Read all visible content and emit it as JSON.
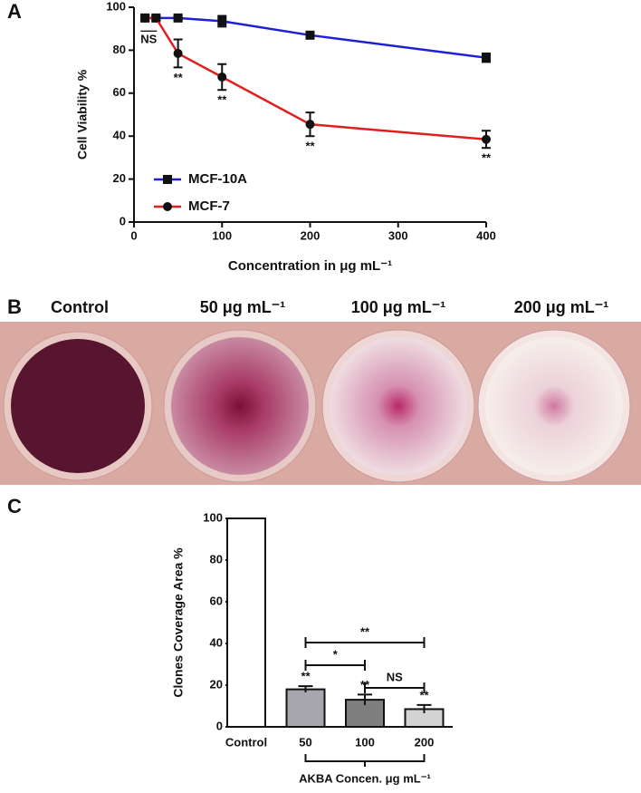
{
  "chart_data": [
    {
      "type": "line",
      "panel": "A",
      "ylabel": "Cell Viability %",
      "xlabel": "Concentration in μg mL⁻¹",
      "x": [
        12.5,
        25,
        50,
        100,
        200,
        400
      ],
      "xlim": [
        0,
        400
      ],
      "xticks": [
        0,
        100,
        200,
        300,
        400
      ],
      "ylim": [
        0,
        100
      ],
      "yticks": [
        0,
        20,
        40,
        60,
        80,
        100
      ],
      "legend": "lower left",
      "series": [
        {
          "name": "MCF-10A",
          "color": "#1f1fd6",
          "marker": "square",
          "values": [
            95,
            95,
            95,
            93.5,
            87,
            76.5
          ],
          "errors": [
            1.5,
            1,
            1,
            2.5,
            1,
            2
          ],
          "annotations": [
            null,
            null,
            null,
            null,
            null,
            null
          ]
        },
        {
          "name": "MCF-7",
          "color": "#e02020",
          "marker": "circle",
          "values": [
            95,
            95,
            78.5,
            67.5,
            45.5,
            38.5
          ],
          "errors": [
            1,
            1,
            6.5,
            6,
            5.5,
            4
          ],
          "annotations": [
            null,
            "NS",
            "**",
            "**",
            "**",
            "**"
          ]
        }
      ]
    },
    {
      "type": "bar",
      "panel": "C",
      "ylabel": "Clones Coverage Area %",
      "xlabel": "AKBA Concen. μg mL⁻¹",
      "categories": [
        "Control",
        "50",
        "100",
        "200"
      ],
      "values": [
        100,
        18,
        13,
        8.5
      ],
      "errors": [
        null,
        1.5,
        2.5,
        2
      ],
      "colors": [
        "#ffffff",
        "#a7a6ae",
        "#7f7f7f",
        "#d3d3d3"
      ],
      "annotations": [
        null,
        "**",
        "**",
        "**"
      ],
      "ylim": [
        0,
        100
      ],
      "yticks": [
        0,
        20,
        40,
        60,
        80,
        100
      ],
      "comparisons": [
        {
          "from": 1,
          "to": 3,
          "label": "**"
        },
        {
          "from": 1,
          "to": 2,
          "label": "*"
        },
        {
          "from": 2,
          "to": 3,
          "label": "NS"
        }
      ]
    }
  ],
  "photo": {
    "panel": "B",
    "labels": [
      "Control",
      "50 μg mL⁻¹",
      "100 μg mL⁻¹",
      "200 μg mL⁻¹"
    ]
  }
}
